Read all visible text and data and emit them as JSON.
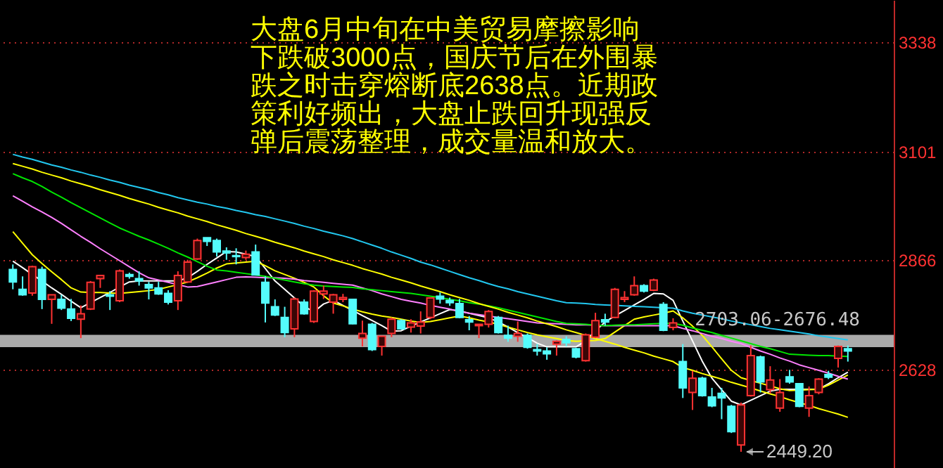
{
  "chart_data": {
    "type": "candlestick",
    "annotations": [
      "大盘6月中旬在中美贸易摩擦影响下跌破3000点，国庆节后在外围暴跌之时击穿熔断底2638点。近期政策利好频出，大盘止跌回升现强反弹后震荡整理，成交量温和放大。",
      "2449.20"
    ],
    "categories": [
      null,
      null,
      null,
      null,
      null,
      null,
      null,
      null,
      null,
      null,
      null,
      null,
      null,
      null,
      null,
      null,
      null,
      null,
      null,
      null,
      null,
      null,
      null,
      null,
      null,
      null,
      null,
      null,
      null,
      null,
      null,
      null,
      null,
      null,
      null,
      null,
      null,
      null,
      null,
      null,
      null,
      null,
      null,
      null,
      null,
      null,
      null,
      null,
      null,
      null,
      null,
      null,
      null,
      null,
      null,
      null,
      null,
      null,
      null,
      null,
      null,
      null,
      null,
      null,
      null,
      null,
      null,
      null,
      null,
      null,
      null,
      null,
      null,
      null,
      null,
      null,
      null,
      null,
      null,
      null,
      null,
      null,
      null,
      null,
      null,
      null,
      null
    ],
    "ohlc": [
      [
        2845,
        2856,
        2802,
        2818
      ],
      [
        2802,
        2830,
        2788,
        2790
      ],
      [
        2794,
        2853,
        2788,
        2851
      ],
      [
        2845,
        2851,
        2759,
        2780
      ],
      [
        2780,
        2790,
        2727,
        2790
      ],
      [
        2780,
        2790,
        2757,
        2761
      ],
      [
        2759,
        2781,
        2733,
        2739
      ],
      [
        2737,
        2767,
        2696,
        2749
      ],
      [
        2759,
        2820,
        2757,
        2817
      ],
      [
        2825,
        2832,
        2805,
        2832
      ],
      [
        2790,
        2798,
        2757,
        2787
      ],
      [
        2777,
        2845,
        2774,
        2842
      ],
      [
        2834,
        2838,
        2825,
        2830
      ],
      [
        2825,
        2841,
        2810,
        2820
      ],
      [
        2812,
        2818,
        2780,
        2805
      ],
      [
        2805,
        2818,
        2790,
        2792
      ],
      [
        2793,
        2800,
        2769,
        2774
      ],
      [
        2777,
        2841,
        2757,
        2832
      ],
      [
        2818,
        2866,
        2816,
        2861
      ],
      [
        2868,
        2912,
        2866,
        2908
      ],
      [
        2914,
        2914,
        2896,
        2906
      ],
      [
        2908,
        2912,
        2873,
        2883
      ],
      [
        2885,
        2893,
        2866,
        2881
      ],
      [
        2875,
        2891,
        2856,
        2873
      ],
      [
        2871,
        2886,
        2866,
        2878
      ],
      [
        2883,
        2899,
        2832,
        2833
      ],
      [
        2817,
        2830,
        2730,
        2772
      ],
      [
        2764,
        2780,
        2744,
        2746
      ],
      [
        2741,
        2764,
        2698,
        2708
      ],
      [
        2716,
        2784,
        2698,
        2781
      ],
      [
        2774,
        2780,
        2747,
        2749
      ],
      [
        2732,
        2800,
        2729,
        2798
      ],
      [
        2792,
        2810,
        2781,
        2798
      ],
      [
        2774,
        2792,
        2749,
        2790
      ],
      [
        2780,
        2792,
        2774,
        2784
      ],
      [
        2780,
        2781,
        2726,
        2727
      ],
      [
        2696,
        2734,
        2678,
        2706
      ],
      [
        2726,
        2729,
        2668,
        2671
      ],
      [
        2678,
        2700,
        2658,
        2700
      ],
      [
        2706,
        2741,
        2698,
        2737
      ],
      [
        2734,
        2737,
        2714,
        2716
      ],
      [
        2720,
        2737,
        2708,
        2729
      ],
      [
        2722,
        2754,
        2706,
        2731
      ],
      [
        2741,
        2784,
        2737,
        2783
      ],
      [
        2787,
        2795,
        2771,
        2781
      ],
      [
        2778,
        2784,
        2766,
        2773
      ],
      [
        2771,
        2781,
        2739,
        2741
      ],
      [
        2736,
        2744,
        2713,
        2731
      ],
      [
        2723,
        2726,
        2696,
        2726
      ],
      [
        2726,
        2757,
        2719,
        2754
      ],
      [
        2741,
        2744,
        2706,
        2708
      ],
      [
        2702,
        2723,
        2688,
        2696
      ],
      [
        2700,
        2732,
        2688,
        2706
      ],
      [
        2702,
        2706,
        2673,
        2676
      ],
      [
        2671,
        2683,
        2658,
        2668
      ],
      [
        2668,
        2676,
        2649,
        2662
      ],
      [
        2683,
        2691,
        2658,
        2689
      ],
      [
        2693,
        2700,
        2678,
        2686
      ],
      [
        2673,
        2675,
        2652,
        2655
      ],
      [
        2647,
        2706,
        2645,
        2703
      ],
      [
        2698,
        2751,
        2696,
        2734
      ],
      [
        2736,
        2749,
        2723,
        2731
      ],
      [
        2741,
        2805,
        2739,
        2802
      ],
      [
        2780,
        2798,
        2774,
        2784
      ],
      [
        2790,
        2830,
        2788,
        2810
      ],
      [
        2810,
        2813,
        2795,
        2798
      ],
      [
        2800,
        2825,
        2798,
        2822
      ],
      [
        2769,
        2774,
        2711,
        2713
      ],
      [
        2719,
        2739,
        2713,
        2729
      ],
      [
        2645,
        2683,
        2566,
        2588
      ],
      [
        2578,
        2625,
        2540,
        2609
      ],
      [
        2609,
        2612,
        2569,
        2571
      ],
      [
        2568,
        2588,
        2546,
        2549
      ],
      [
        2576,
        2588,
        2520,
        2566
      ],
      [
        2548,
        2551,
        2490,
        2493
      ],
      [
        2464,
        2556,
        2449.2,
        2551
      ],
      [
        2571,
        2680,
        2569,
        2658
      ],
      [
        2655,
        2658,
        2578,
        2601
      ],
      [
        2584,
        2635,
        2576,
        2605
      ],
      [
        2544,
        2607,
        2536,
        2578
      ],
      [
        2612,
        2627,
        2597,
        2601
      ],
      [
        2597,
        2598,
        2546,
        2548
      ],
      [
        2544,
        2591,
        2525,
        2571
      ],
      [
        2578,
        2609,
        2574,
        2607
      ],
      [
        2617,
        2625,
        2607,
        2611
      ],
      [
        2652,
        2680,
        2632,
        2678
      ],
      [
        2673,
        2680,
        2645,
        2668
      ]
    ],
    "colors": [
      "#54fcfc",
      "#54fcfc",
      "#ff3232",
      "#54fcfc",
      "#ff3232",
      "#54fcfc",
      "#54fcfc",
      "#ff3232",
      "#ff3232",
      "#ff3232",
      "#54fcfc",
      "#ff3232",
      "#54fcfc",
      "#54fcfc",
      "#54fcfc",
      "#54fcfc",
      "#54fcfc",
      "#ff3232",
      "#ff3232",
      "#ff3232",
      "#54fcfc",
      "#54fcfc",
      "#54fcfc",
      "#54fcfc",
      "#ff3232",
      "#54fcfc",
      "#54fcfc",
      "#54fcfc",
      "#54fcfc",
      "#ff3232",
      "#54fcfc",
      "#ff3232",
      "#ff3232",
      "#ff3232",
      "#ff3232",
      "#54fcfc",
      "#ff3232",
      "#54fcfc",
      "#ff3232",
      "#ff3232",
      "#54fcfc",
      "#ff3232",
      "#ff3232",
      "#ff3232",
      "#54fcfc",
      "#54fcfc",
      "#54fcfc",
      "#54fcfc",
      "#ff3232",
      "#ff3232",
      "#54fcfc",
      "#54fcfc",
      "#ff3232",
      "#54fcfc",
      "#54fcfc",
      "#54fcfc",
      "#ff3232",
      "#54fcfc",
      "#54fcfc",
      "#ff3232",
      "#ff3232",
      "#54fcfc",
      "#ff3232",
      "#ff3232",
      "#ff3232",
      "#54fcfc",
      "#ff3232",
      "#54fcfc",
      "#ff3232",
      "#54fcfc",
      "#ff3232",
      "#54fcfc",
      "#54fcfc",
      "#54fcfc",
      "#54fcfc",
      "#ff3232",
      "#ff3232",
      "#54fcfc",
      "#ff3232",
      "#ff3232",
      "#54fcfc",
      "#54fcfc",
      "#ff3232",
      "#ff3232",
      "#54fcfc",
      "#ff3232",
      "#54fcfc"
    ],
    "series": [
      {
        "type": "line",
        "color": "#ffffff",
        "values": [
          2863,
          2849,
          2834,
          2820,
          2805,
          2791,
          2776,
          2762,
          2773,
          2784,
          2795,
          2807,
          2818,
          2820,
          2820,
          2820,
          2820,
          2820,
          2827,
          2841,
          2856,
          2870,
          2884,
          2883,
          2878,
          2873,
          2847,
          2820,
          2802,
          2783,
          2765,
          2753,
          2770,
          2778,
          2767,
          2756,
          2745,
          2734,
          2723,
          2711,
          2712,
          2722,
          2731,
          2740,
          2749,
          2758,
          2755,
          2750,
          2745,
          2740,
          2731,
          2720,
          2708,
          2697,
          2685,
          2677,
          2677,
          2677,
          2677,
          2690,
          2712,
          2731,
          2744,
          2756,
          2768,
          2780,
          2793,
          2792,
          2778,
          2733,
          2690,
          2646,
          2609,
          2584,
          2559,
          2551,
          2561,
          2571,
          2581,
          2585,
          2585,
          2585,
          2585,
          2585,
          2597,
          2610,
          2622
        ]
      },
      {
        "type": "line",
        "color": "#ffff00",
        "values": [
          2927,
          2902,
          2877,
          2858,
          2840,
          2823,
          2805,
          2796,
          2795,
          2795,
          2794,
          2793,
          2795,
          2797,
          2799,
          2802,
          2807,
          2812,
          2818,
          2827,
          2837,
          2848,
          2857,
          2859,
          2861,
          2863,
          2853,
          2842,
          2834,
          2826,
          2817,
          2807,
          2788,
          2772,
          2766,
          2759,
          2753,
          2748,
          2744,
          2741,
          2737,
          2733,
          2730,
          2732,
          2736,
          2740,
          2744,
          2740,
          2735,
          2731,
          2726,
          2720,
          2714,
          2708,
          2703,
          2699,
          2695,
          2691,
          2689,
          2690,
          2691,
          2695,
          2709,
          2723,
          2737,
          2742,
          2746,
          2750,
          2755,
          2740,
          2722,
          2702,
          2677,
          2651,
          2626,
          2610,
          2604,
          2598,
          2592,
          2586,
          2582,
          2583,
          2584,
          2585,
          2594,
          2605,
          2616
        ]
      },
      {
        "type": "line",
        "color": "#ff80ff",
        "values": [
          3005,
          2993,
          2981,
          2970,
          2958,
          2945,
          2931,
          2917,
          2904,
          2890,
          2877,
          2864,
          2851,
          2838,
          2827,
          2822,
          2817,
          2812,
          2807,
          2808,
          2813,
          2818,
          2823,
          2828,
          2829,
          2828,
          2827,
          2827,
          2826,
          2824,
          2821,
          2819,
          2817,
          2815,
          2813,
          2811,
          2805,
          2799,
          2792,
          2786,
          2780,
          2776,
          2772,
          2767,
          2763,
          2759,
          2754,
          2750,
          2747,
          2744,
          2741,
          2738,
          2735,
          2732,
          2729,
          2728,
          2727,
          2726,
          2725,
          2725,
          2724,
          2723,
          2723,
          2723,
          2723,
          2723,
          2723,
          2723,
          2723,
          2717,
          2712,
          2706,
          2700,
          2695,
          2689,
          2684,
          2676,
          2668,
          2661,
          2653,
          2646,
          2638,
          2632,
          2626,
          2620,
          2613,
          2607
        ]
      },
      {
        "type": "line",
        "color": "#00e600",
        "values": [
          3053,
          3044,
          3036,
          3025,
          3013,
          3002,
          2990,
          2979,
          2968,
          2957,
          2946,
          2935,
          2926,
          2917,
          2909,
          2900,
          2891,
          2881,
          2872,
          2862,
          2852,
          2844,
          2842,
          2839,
          2836,
          2833,
          2830,
          2826,
          2822,
          2818,
          2814,
          2811,
          2809,
          2808,
          2807,
          2806,
          2803,
          2801,
          2799,
          2797,
          2795,
          2793,
          2790,
          2787,
          2784,
          2780,
          2777,
          2773,
          2770,
          2766,
          2762,
          2757,
          2752,
          2747,
          2742,
          2737,
          2732,
          2728,
          2727,
          2726,
          2724,
          2723,
          2724,
          2725,
          2725,
          2726,
          2727,
          2728,
          2728,
          2724,
          2718,
          2713,
          2708,
          2702,
          2696,
          2690,
          2684,
          2678,
          2673,
          2667,
          2661,
          2660,
          2659,
          2658,
          2658,
          2657,
          2656
        ]
      },
      {
        "type": "line",
        "color": "#22c8f0",
        "values": [
          3095,
          3089,
          3084,
          3078,
          3072,
          3067,
          3061,
          3056,
          3050,
          3045,
          3039,
          3034,
          3028,
          3023,
          3018,
          3012,
          3007,
          3001,
          2996,
          2991,
          2987,
          2982,
          2978,
          2973,
          2969,
          2964,
          2960,
          2955,
          2950,
          2945,
          2939,
          2934,
          2928,
          2923,
          2918,
          2912,
          2905,
          2898,
          2891,
          2883,
          2876,
          2869,
          2861,
          2855,
          2848,
          2841,
          2834,
          2827,
          2821,
          2814,
          2808,
          2803,
          2797,
          2792,
          2787,
          2782,
          2777,
          2773,
          2772,
          2771,
          2769,
          2768,
          2767,
          2766,
          2765,
          2764,
          2763,
          2762,
          2761,
          2755,
          2750,
          2746,
          2742,
          2738,
          2733,
          2729,
          2725,
          2721,
          2717,
          2714,
          2711,
          2708,
          2705,
          2701,
          2698,
          2695,
          2692
        ]
      },
      {
        "type": "line",
        "color": "#ffff00",
        "values": [
          3075,
          3069,
          3063,
          3056,
          3050,
          3044,
          3037,
          3031,
          3025,
          3018,
          3012,
          3006,
          2999,
          2993,
          2987,
          2980,
          2974,
          2968,
          2961,
          2955,
          2949,
          2942,
          2936,
          2930,
          2923,
          2917,
          2911,
          2904,
          2898,
          2892,
          2885,
          2879,
          2873,
          2866,
          2860,
          2854,
          2847,
          2841,
          2835,
          2828,
          2822,
          2816,
          2809,
          2803,
          2797,
          2790,
          2784,
          2778,
          2771,
          2765,
          2759,
          2752,
          2746,
          2740,
          2733,
          2727,
          2721,
          2714,
          2708,
          2702,
          2695,
          2689,
          2683,
          2676,
          2670,
          2664,
          2657,
          2651,
          2645,
          2632,
          2626,
          2619,
          2613,
          2607,
          2600,
          2594,
          2588,
          2581,
          2575,
          2569,
          2562,
          2556,
          2550,
          2543,
          2537,
          2531,
          2524
        ]
      }
    ],
    "bands": [
      {
        "axis": "y",
        "from": 2676.48,
        "to": 2703.06,
        "label": "2703.06-2676.48",
        "color": "#c8c8c8"
      }
    ],
    "ylim": [
      2414,
      3430
    ],
    "yticks": [
      2628,
      2866,
      3101,
      3338
    ],
    "grid": "y"
  }
}
